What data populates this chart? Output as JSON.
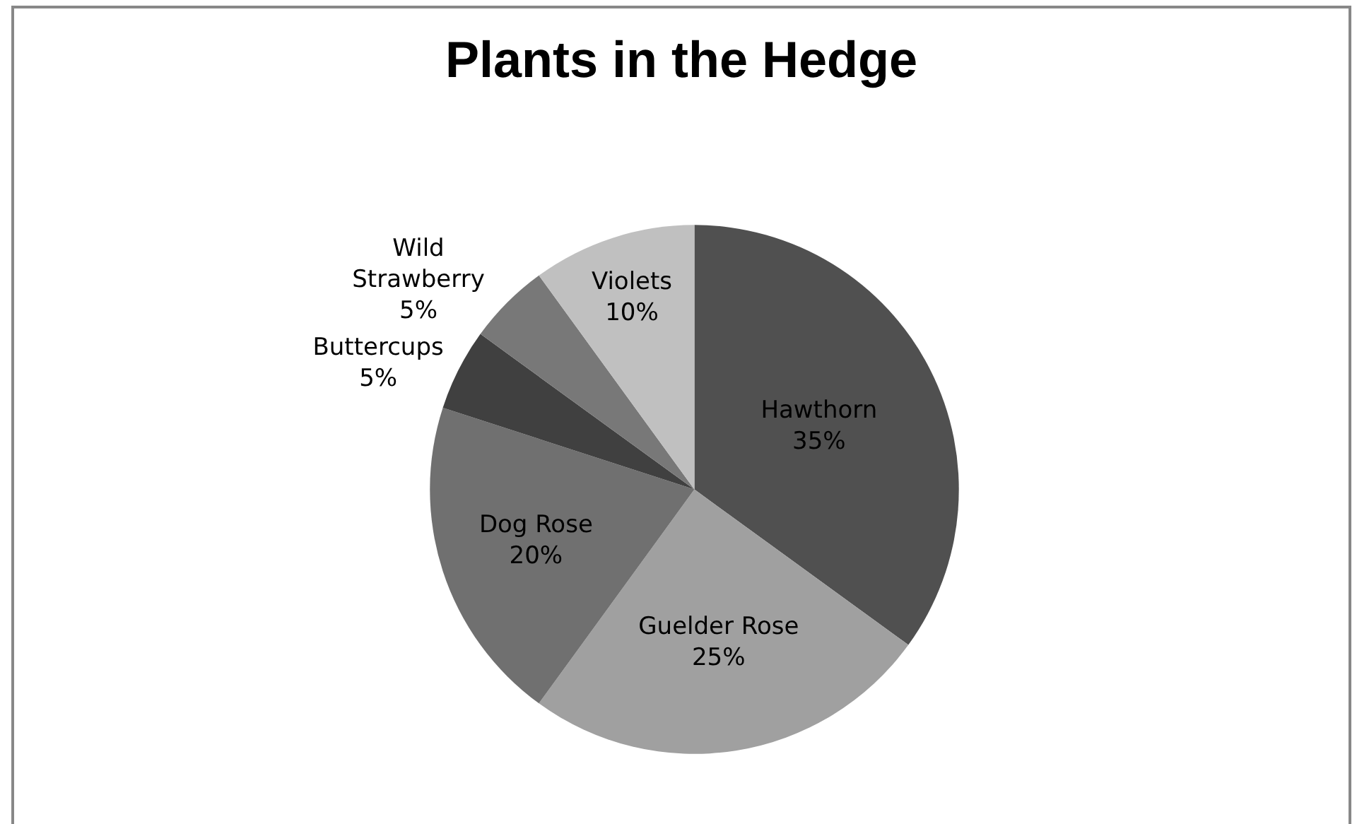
{
  "chart_data": {
    "type": "pie",
    "title": "Plants in the Hedge",
    "categories": [
      "Hawthorn",
      "Guelder Rose",
      "Dog Rose",
      "Buttercups",
      "Wild Strawberry",
      "Violets"
    ],
    "values": [
      35,
      25,
      20,
      5,
      5,
      10
    ],
    "value_labels": [
      "35%",
      "25%",
      "20%",
      "5%",
      "5%",
      "10%"
    ],
    "colors": [
      "#505050",
      "#a0a0a0",
      "#707070",
      "#404040",
      "#787878",
      "#c0c0c0"
    ],
    "legend": false
  }
}
